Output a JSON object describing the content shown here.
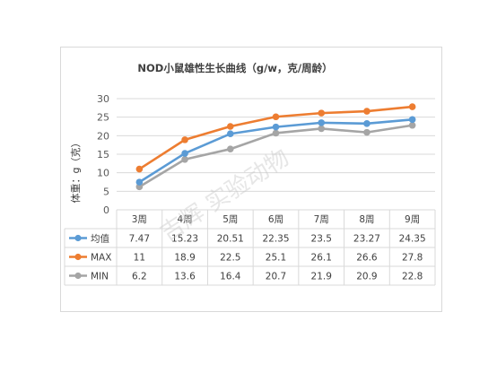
{
  "chart_data": {
    "type": "line",
    "title": "NOD小鼠雄性生长曲线（g/w，克/周龄）",
    "ylabel": "体重：g（克）",
    "xlabel": "",
    "ylim": [
      0,
      30
    ],
    "yticks": [
      "0",
      "5",
      "10",
      "15",
      "20",
      "25",
      "30"
    ],
    "grid": true,
    "legend_placement": "data-table-left",
    "categories": [
      "3周",
      "4周",
      "5周",
      "6周",
      "7周",
      "8周",
      "9周"
    ],
    "series": [
      {
        "name": "均值",
        "color": "#5b9bd5",
        "values": [
          7.47,
          15.23,
          20.51,
          22.35,
          23.5,
          23.27,
          24.35
        ],
        "labels": [
          "7.47",
          "15.23",
          "20.51",
          "22.35",
          "23.5",
          "23.27",
          "24.35"
        ]
      },
      {
        "name": "MAX",
        "color": "#ed7d31",
        "values": [
          11,
          18.9,
          22.5,
          25.1,
          26.1,
          26.6,
          27.8
        ],
        "labels": [
          "11",
          "18.9",
          "22.5",
          "25.1",
          "26.1",
          "26.6",
          "27.8"
        ]
      },
      {
        "name": "MIN",
        "color": "#a5a5a5",
        "values": [
          6.2,
          13.6,
          16.4,
          20.7,
          21.9,
          20.9,
          22.8
        ],
        "labels": [
          "6.2",
          "13.6",
          "16.4",
          "20.7",
          "21.9",
          "20.9",
          "22.8"
        ]
      }
    ],
    "data_table": true
  },
  "watermark": {
    "text": "吉辉 实验动物"
  }
}
